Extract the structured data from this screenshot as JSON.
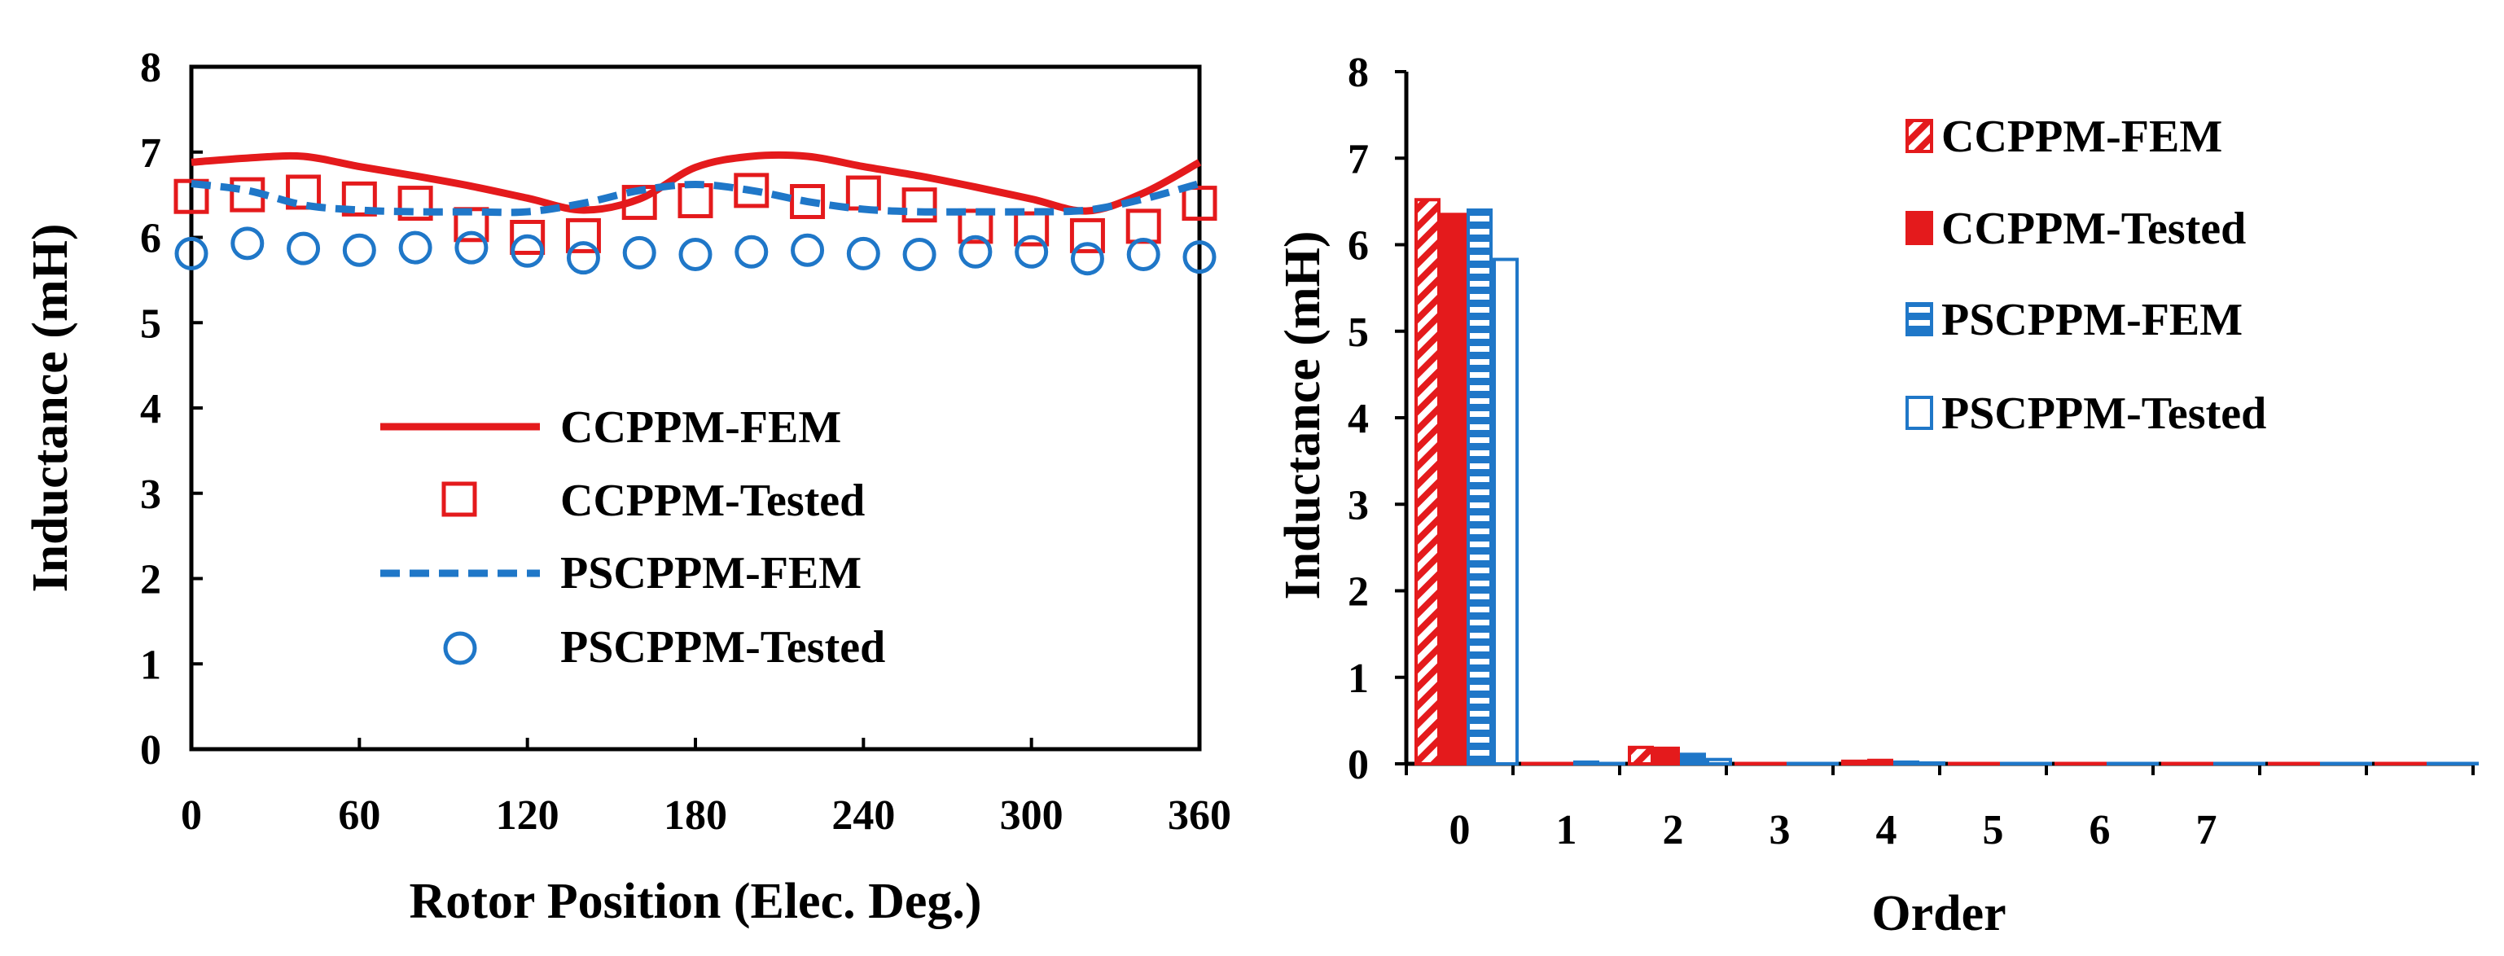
{
  "colors": {
    "red": "#e41a1c",
    "blue": "#1f77c8",
    "axis": "#000000"
  },
  "chart_data": [
    {
      "type": "line",
      "xlabel": "Rotor Position (Elec. Deg.)",
      "ylabel": "Inductance (mH)",
      "xlim": [
        0,
        360
      ],
      "ylim": [
        0,
        8
      ],
      "xticks": [
        "0",
        "60",
        "120",
        "180",
        "240",
        "300",
        "360"
      ],
      "xtick_values": [
        0,
        60,
        120,
        180,
        240,
        300,
        360
      ],
      "yticks": [
        "0",
        "1",
        "2",
        "3",
        "4",
        "5",
        "6",
        "7",
        "8"
      ],
      "grid": false,
      "legend_position": "center",
      "series": [
        {
          "name": "CCPPM-FEM",
          "style": "solid-line",
          "color": "red",
          "x": [
            0,
            20,
            40,
            60,
            80,
            100,
            120,
            140,
            160,
            180,
            200,
            220,
            240,
            260,
            280,
            300,
            320,
            340,
            360
          ],
          "y": [
            6.88,
            6.93,
            6.95,
            6.83,
            6.72,
            6.6,
            6.46,
            6.32,
            6.45,
            6.82,
            6.95,
            6.95,
            6.83,
            6.72,
            6.59,
            6.45,
            6.31,
            6.52,
            6.88
          ]
        },
        {
          "name": "CCPPM-Tested",
          "style": "square-marker",
          "color": "red",
          "x": [
            0,
            20,
            40,
            60,
            80,
            100,
            120,
            140,
            160,
            180,
            200,
            220,
            240,
            260,
            280,
            300,
            320,
            340,
            360
          ],
          "y": [
            6.48,
            6.5,
            6.53,
            6.45,
            6.4,
            6.15,
            6.0,
            6.02,
            6.41,
            6.43,
            6.55,
            6.42,
            6.52,
            6.38,
            6.13,
            6.1,
            6.02,
            6.13,
            6.4
          ]
        },
        {
          "name": "PSCPPM-FEM",
          "style": "dashed-line",
          "color": "blue",
          "x": [
            0,
            20,
            40,
            60,
            80,
            100,
            120,
            140,
            160,
            180,
            200,
            220,
            240,
            260,
            280,
            300,
            320,
            340,
            360
          ],
          "y": [
            6.63,
            6.55,
            6.38,
            6.32,
            6.3,
            6.3,
            6.3,
            6.4,
            6.55,
            6.62,
            6.55,
            6.42,
            6.33,
            6.3,
            6.3,
            6.3,
            6.32,
            6.45,
            6.63
          ]
        },
        {
          "name": "PSCPPM-Tested",
          "style": "circle-marker",
          "color": "blue",
          "x": [
            0,
            20,
            40,
            60,
            80,
            100,
            120,
            140,
            160,
            180,
            200,
            220,
            240,
            260,
            280,
            300,
            320,
            340,
            360
          ],
          "y": [
            5.81,
            5.93,
            5.87,
            5.85,
            5.88,
            5.88,
            5.84,
            5.76,
            5.82,
            5.8,
            5.83,
            5.85,
            5.81,
            5.8,
            5.83,
            5.83,
            5.75,
            5.8,
            5.77
          ]
        }
      ]
    },
    {
      "type": "bar",
      "xlabel": "Order",
      "ylabel": "Inductance (mH)",
      "ylim": [
        0,
        8
      ],
      "categories": [
        "0",
        "1",
        "2",
        "3",
        "4",
        "5",
        "6",
        "7",
        "",
        ""
      ],
      "yticks": [
        "0",
        "1",
        "2",
        "3",
        "4",
        "5",
        "6",
        "7",
        "8"
      ],
      "grid": false,
      "legend_position": "top-right",
      "series": [
        {
          "name": "CCPPM-FEM",
          "pattern": "hatched",
          "color": "red",
          "values": [
            6.52,
            0.0,
            0.19,
            0.0,
            0.03,
            0.0,
            0.0,
            0.0,
            0.0,
            0.0
          ]
        },
        {
          "name": "CCPPM-Tested",
          "pattern": "solid",
          "color": "red",
          "values": [
            6.35,
            0.0,
            0.18,
            0.0,
            0.04,
            0.0,
            0.0,
            0.0,
            0.0,
            0.0
          ]
        },
        {
          "name": "PSCPPM-FEM",
          "pattern": "striped",
          "color": "blue",
          "values": [
            6.4,
            0.02,
            0.11,
            0.0,
            0.02,
            0.0,
            0.0,
            0.0,
            0.0,
            0.0
          ]
        },
        {
          "name": "PSCPPM-Tested",
          "pattern": "hollow",
          "color": "blue",
          "values": [
            5.83,
            0.0,
            0.05,
            0.0,
            0.01,
            0.0,
            0.0,
            0.0,
            0.0,
            0.0
          ]
        }
      ]
    }
  ]
}
